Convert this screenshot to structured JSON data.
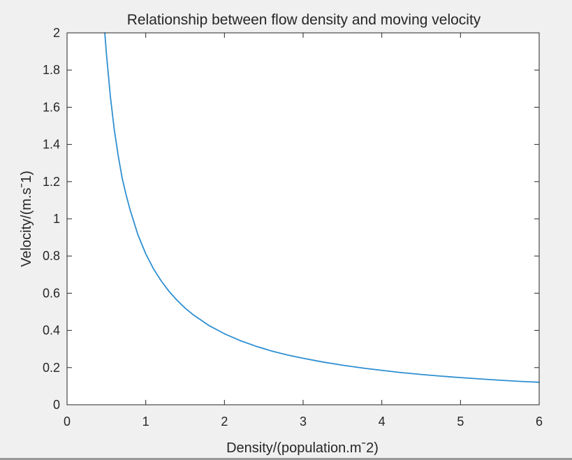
{
  "colors": {
    "figure_background": "#f0f0f0",
    "axes_background": "#ffffff",
    "axes_color": "#262626",
    "line_color": "#2f8fd1"
  },
  "chart_data": {
    "type": "line",
    "title": "Relationship between flow density and moving velocity",
    "xlabel": "Density/(population.mˉ2)",
    "ylabel": "Velocity/(m.sˉ1)",
    "xlim": [
      0,
      6
    ],
    "ylim": [
      0,
      2
    ],
    "xticks": [
      0,
      1,
      2,
      3,
      4,
      5,
      6
    ],
    "xtick_labels": [
      "0",
      "1",
      "2",
      "3",
      "4",
      "5",
      "6"
    ],
    "yticks": [
      0,
      0.2,
      0.4,
      0.6,
      0.8,
      1,
      1.2,
      1.4,
      1.6,
      1.8,
      2
    ],
    "ytick_labels": [
      "0",
      "0.2",
      "0.4",
      "0.6",
      "0.8",
      "1",
      "1.2",
      "1.4",
      "1.6",
      "1.8",
      "2"
    ],
    "grid": false,
    "box": true,
    "series": [
      {
        "color": "#2f8fd1",
        "x": [
          0.48,
          0.5,
          0.55,
          0.6,
          0.65,
          0.7,
          0.75,
          0.8,
          0.9,
          1.0,
          1.1,
          1.2,
          1.3,
          1.4,
          1.5,
          1.6,
          1.8,
          2.0,
          2.2,
          2.4,
          2.6,
          2.8,
          3.0,
          3.25,
          3.5,
          3.75,
          4.0,
          4.25,
          4.5,
          4.75,
          5.0,
          5.25,
          5.5,
          5.75,
          6.0
        ],
        "y": [
          2.0,
          1.89,
          1.66,
          1.48,
          1.34,
          1.22,
          1.13,
          1.05,
          0.915,
          0.812,
          0.73,
          0.664,
          0.608,
          0.561,
          0.52,
          0.485,
          0.427,
          0.382,
          0.345,
          0.315,
          0.289,
          0.268,
          0.25,
          0.23,
          0.213,
          0.198,
          0.185,
          0.173,
          0.163,
          0.154,
          0.146,
          0.139,
          0.132,
          0.126,
          0.121
        ]
      }
    ]
  }
}
